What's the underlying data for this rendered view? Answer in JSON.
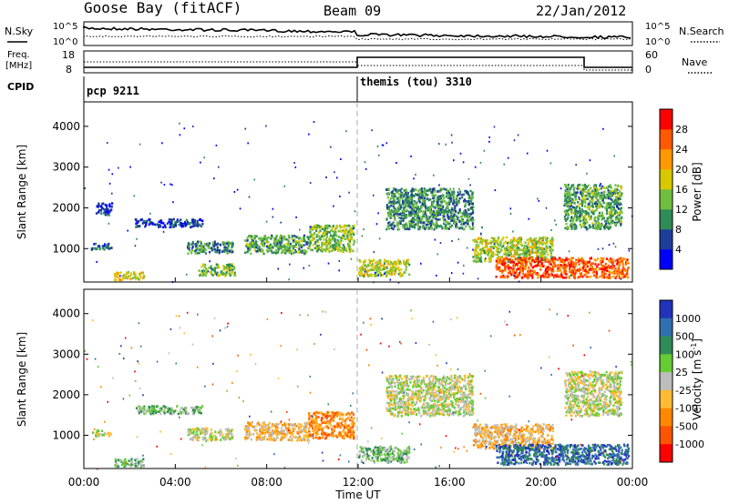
{
  "header": {
    "station": "Goose Bay (fitACF)",
    "beam": "Beam 09",
    "date": "22/Jan/2012"
  },
  "strips": {
    "nsky_label": "N.Sky",
    "nsearch_label": "N.Search",
    "noise_ticks": [
      "10^5",
      "10^0"
    ],
    "freq_label_1": "Freq.",
    "freq_label_2": "[MHz]",
    "freq_ticks": [
      "18",
      "8"
    ],
    "nave_label": "Nave",
    "nave_ticks": [
      "60",
      "0"
    ],
    "cpid_label": "CPID",
    "cpid_1": "pcp 9211",
    "cpid_2": "themis (tou) 3310"
  },
  "colors": {
    "power": [
      "#0000ff",
      "#1e3c9a",
      "#2f8b57",
      "#6fbf3f",
      "#d8c800",
      "#ff9900",
      "#ff5a00",
      "#ff0000"
    ],
    "velocity": [
      "#2233bb",
      "#3070b0",
      "#2f8b57",
      "#66cc33",
      "#bdbdbd",
      "#ffbb33",
      "#ff8800",
      "#ff5500",
      "#ff0000"
    ]
  },
  "chart_data": [
    {
      "type": "heatmap",
      "title": "",
      "xlabel": "Time UT",
      "ylabel": "Slant Range [km]",
      "x_ticks": [
        "00:00",
        "04:00",
        "08:00",
        "12:00",
        "16:00",
        "20:00",
        "00:00"
      ],
      "x_range_hours": [
        0,
        24
      ],
      "y_ticks": [
        1000,
        2000,
        3000,
        4000
      ],
      "y_range": [
        180,
        4600
      ],
      "colorbar": {
        "label": "Power [dB]",
        "ticks": [
          4,
          8,
          12,
          16,
          20,
          24,
          28
        ],
        "range": [
          0,
          32
        ]
      },
      "scatter_regions": [
        {
          "t0": 0.3,
          "t1": 1.2,
          "r0": 1000,
          "r1": 1150,
          "value": 8
        },
        {
          "t0": 0.5,
          "t1": 1.2,
          "r0": 1850,
          "r1": 2150,
          "value": 5
        },
        {
          "t0": 1.3,
          "t1": 2.6,
          "r0": 250,
          "r1": 450,
          "value": 18
        },
        {
          "t0": 2.2,
          "t1": 5.2,
          "r0": 1550,
          "r1": 1750,
          "value": 5
        },
        {
          "t0": 4.5,
          "t1": 6.5,
          "r0": 900,
          "r1": 1200,
          "value": 10
        },
        {
          "t0": 5.0,
          "t1": 6.6,
          "r0": 350,
          "r1": 650,
          "value": 14
        },
        {
          "t0": 7.0,
          "t1": 9.8,
          "r0": 900,
          "r1": 1350,
          "value": 12
        },
        {
          "t0": 9.8,
          "t1": 11.8,
          "r0": 950,
          "r1": 1600,
          "value": 14
        },
        {
          "t0": 12.0,
          "t1": 14.2,
          "r0": 350,
          "r1": 750,
          "value": 16
        },
        {
          "t0": 13.2,
          "t1": 17.0,
          "r0": 1500,
          "r1": 2500,
          "value": 10
        },
        {
          "t0": 17.0,
          "t1": 20.5,
          "r0": 700,
          "r1": 1300,
          "value": 16
        },
        {
          "t0": 18.0,
          "t1": 23.8,
          "r0": 300,
          "r1": 800,
          "value": 26
        },
        {
          "t0": 21.0,
          "t1": 23.5,
          "r0": 1500,
          "r1": 2600,
          "value": 12
        }
      ]
    },
    {
      "type": "heatmap",
      "title": "",
      "xlabel": "Time UT",
      "ylabel": "Slant Range [km]",
      "x_ticks": [
        "00:00",
        "04:00",
        "08:00",
        "12:00",
        "16:00",
        "20:00",
        "00:00"
      ],
      "x_range_hours": [
        0,
        24
      ],
      "y_ticks": [
        1000,
        2000,
        3000,
        4000
      ],
      "y_range": [
        180,
        4600
      ],
      "colorbar": {
        "label": "Velocity [m s^-1]",
        "ticks": [
          1000,
          500,
          100,
          25,
          -25,
          -100,
          -500,
          -1000
        ]
      },
      "scatter_regions": [
        {
          "t0": 0.3,
          "t1": 1.2,
          "r0": 1000,
          "r1": 1150,
          "value": "-25"
        },
        {
          "t0": 1.3,
          "t1": 2.6,
          "r0": 250,
          "r1": 450,
          "value": "100"
        },
        {
          "t0": 2.2,
          "t1": 5.2,
          "r0": 1550,
          "r1": 1750,
          "value": "100"
        },
        {
          "t0": 4.5,
          "t1": 6.5,
          "r0": 900,
          "r1": 1200,
          "value": "0"
        },
        {
          "t0": 7.0,
          "t1": 9.8,
          "r0": 900,
          "r1": 1350,
          "value": "-100"
        },
        {
          "t0": 9.8,
          "t1": 11.8,
          "r0": 950,
          "r1": 1600,
          "value": "-500"
        },
        {
          "t0": 12.0,
          "t1": 14.2,
          "r0": 350,
          "r1": 750,
          "value": "100"
        },
        {
          "t0": 13.2,
          "t1": 17.0,
          "r0": 1500,
          "r1": 2500,
          "value": "0"
        },
        {
          "t0": 17.0,
          "t1": 20.5,
          "r0": 700,
          "r1": 1300,
          "value": "-100"
        },
        {
          "t0": 18.0,
          "t1": 23.8,
          "r0": 300,
          "r1": 800,
          "value": "500"
        },
        {
          "t0": 21.0,
          "t1": 23.5,
          "r0": 1500,
          "r1": 2600,
          "value": "0"
        }
      ]
    }
  ]
}
